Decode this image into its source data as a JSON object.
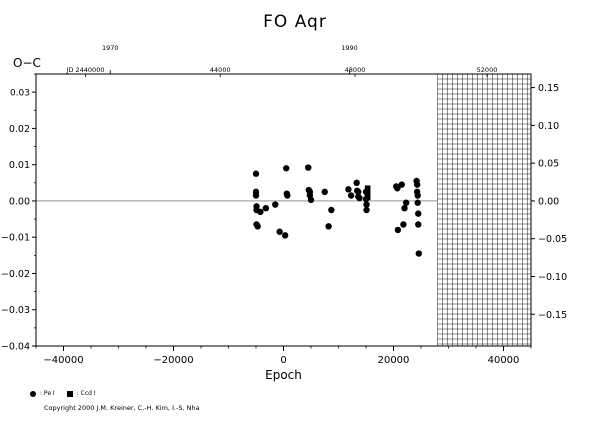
{
  "title": "FO Aqr",
  "copyright": "Copyright 2000 J.M. Kreiner, C.-H. Kim, I.-S. Nha",
  "legend": {
    "primary": ": Pe I",
    "secondary": ": Ccd I"
  },
  "chart_data": {
    "type": "scatter",
    "title": "FO Aqr",
    "xlabel": "Epoch",
    "ylabel": "O−C",
    "xlim": [
      -45000,
      45000
    ],
    "ylim": [
      -0.04,
      0.035
    ],
    "y2lim": [
      -0.192,
      0.168
    ],
    "xticks": [
      -40000,
      -20000,
      0,
      20000,
      40000
    ],
    "xtick_labels": [
      "−40000",
      "−20000",
      "0",
      "20000",
      "40000"
    ],
    "yticks": [
      -0.04,
      -0.03,
      -0.02,
      -0.01,
      0.0,
      0.01,
      0.02,
      0.03
    ],
    "ytick_labels": [
      "−0.04",
      "−0.03",
      "−0.02",
      "−0.01",
      "0.00",
      "0.01",
      "0.02",
      "0.03"
    ],
    "y2ticks": [
      -0.15,
      -0.1,
      -0.05,
      0.0,
      0.05,
      0.1,
      0.15
    ],
    "y2tick_labels": [
      "−0.15",
      "−0.10",
      "−0.05",
      "0.00",
      "0.05",
      "0.10",
      "0.15"
    ],
    "top_years": [
      {
        "label": "1970",
        "epoch": -31500
      },
      {
        "label": "1990",
        "epoch": 12000
      }
    ],
    "top_jd": [
      {
        "label": "JD 2440000",
        "epoch": -36000
      },
      {
        "label": "44000",
        "epoch": -11500
      },
      {
        "label": "48000",
        "epoch": 13000
      },
      {
        "label": "52000",
        "epoch": 37000
      }
    ],
    "future_grid_start": 28000,
    "zero_line": 0.0,
    "series": [
      {
        "marker": "circle",
        "points": [
          [
            -5000,
            0.0075
          ],
          [
            -5000,
            0.0025
          ],
          [
            -5000,
            0.0015
          ],
          [
            -4900,
            -0.0015
          ],
          [
            -4900,
            -0.0025
          ],
          [
            -4900,
            -0.0065
          ],
          [
            -4700,
            -0.007
          ],
          [
            -4200,
            -0.003
          ],
          [
            -3200,
            -0.002
          ],
          [
            -1500,
            -0.001
          ],
          [
            -700,
            -0.0085
          ],
          [
            300,
            -0.0095
          ],
          [
            500,
            0.009
          ],
          [
            600,
            0.002
          ],
          [
            700,
            0.0015
          ],
          [
            4500,
            0.0092
          ],
          [
            4600,
            0.003
          ],
          [
            4800,
            0.0025
          ],
          [
            4800,
            0.0015
          ],
          [
            5000,
            0.0003
          ],
          [
            7500,
            0.0025
          ],
          [
            8200,
            -0.007
          ],
          [
            8700,
            -0.0025
          ],
          [
            11800,
            0.0032
          ],
          [
            12300,
            0.0015
          ],
          [
            13300,
            0.005
          ],
          [
            13400,
            0.0028
          ],
          [
            13600,
            0.0025
          ],
          [
            13600,
            0.0012
          ],
          [
            13800,
            0.0008
          ],
          [
            15000,
            0.0025
          ],
          [
            15000,
            0.0005
          ],
          [
            15100,
            -0.001
          ],
          [
            15100,
            -0.0025
          ],
          [
            20500,
            0.004
          ],
          [
            20700,
            0.0035
          ],
          [
            20800,
            -0.008
          ],
          [
            21500,
            0.0045
          ],
          [
            21800,
            -0.0065
          ],
          [
            22000,
            -0.002
          ],
          [
            22300,
            -0.0005
          ],
          [
            24200,
            0.0055
          ],
          [
            24300,
            0.0045
          ],
          [
            24300,
            0.0025
          ],
          [
            24400,
            0.0015
          ],
          [
            24400,
            -0.0005
          ],
          [
            24500,
            -0.0035
          ],
          [
            24500,
            -0.0065
          ],
          [
            24600,
            -0.0145
          ]
        ]
      },
      {
        "marker": "square",
        "points": [
          [
            15300,
            0.0035
          ],
          [
            15300,
            0.002
          ],
          [
            15300,
            0.001
          ]
        ]
      }
    ]
  }
}
